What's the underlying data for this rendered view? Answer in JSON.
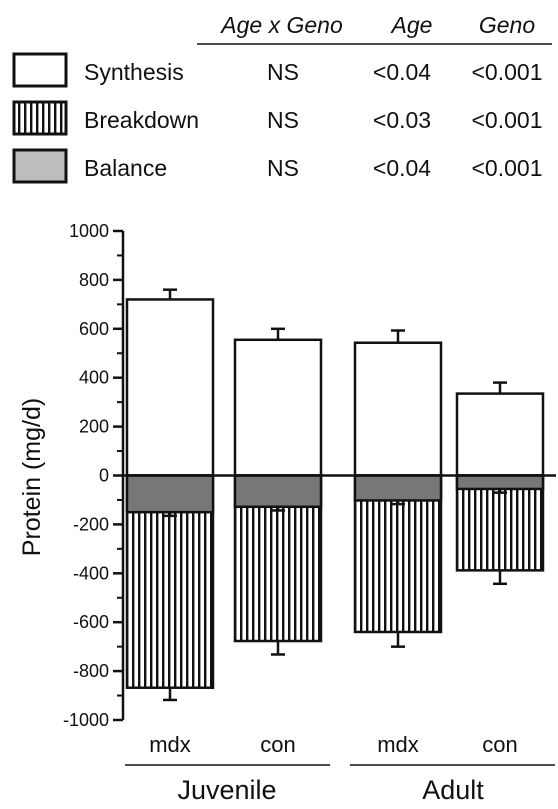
{
  "legend_table": {
    "headers": [
      "Age x Geno",
      "Age",
      "Geno"
    ],
    "rows": [
      {
        "series": "Synthesis",
        "values": [
          "NS",
          "<0.04",
          "<0.001"
        ]
      },
      {
        "series": "Breakdown",
        "values": [
          "NS",
          "<0.03",
          "<0.001"
        ]
      },
      {
        "series": "Balance",
        "values": [
          "NS",
          "<0.04",
          "<0.001"
        ]
      }
    ]
  },
  "chart_data": {
    "type": "bar",
    "ylabel": "Protein (mg/d)",
    "ylim": [
      -1000,
      1000
    ],
    "yticks": [
      1000,
      800,
      600,
      400,
      200,
      0,
      -200,
      -400,
      -600,
      -800,
      -1000
    ],
    "categories": [
      "mdx",
      "con",
      "mdx",
      "con"
    ],
    "groups": [
      {
        "label": "Juvenile",
        "categories": [
          0,
          1
        ]
      },
      {
        "label": "Adult",
        "categories": [
          2,
          3
        ]
      }
    ],
    "series": [
      {
        "name": "Synthesis",
        "values": [
          720,
          555,
          543,
          335
        ],
        "errors": [
          40,
          45,
          50,
          45
        ]
      },
      {
        "name": "Breakdown",
        "values": [
          -868,
          -677,
          -640,
          -388
        ],
        "errors": [
          50,
          55,
          60,
          55
        ]
      },
      {
        "name": "Balance",
        "values": [
          -150,
          -128,
          -102,
          -55
        ],
        "errors": [
          15,
          15,
          15,
          15
        ]
      }
    ],
    "colors": {
      "synthesis": "#ffffff",
      "breakdown_hatch": "#111111",
      "balance": "#777777"
    },
    "grid": false,
    "legend_position": "top"
  }
}
